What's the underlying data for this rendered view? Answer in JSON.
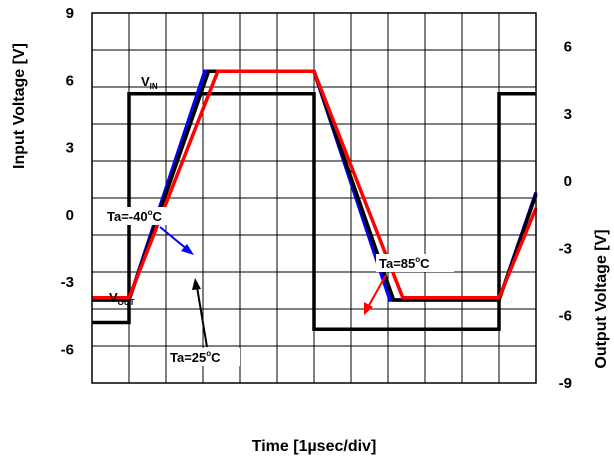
{
  "chart_data": {
    "type": "line",
    "x_unit": "µs (1 µs per division)",
    "x_range": [
      0,
      12
    ],
    "grid": true,
    "xlabel": "Time [1µsec/div]",
    "top_axis": {
      "ylabel": "Input Voltage [V]",
      "ylim": [
        -7.5,
        9
      ],
      "tick_labels": [
        "9",
        "6",
        "3",
        "0",
        "-3",
        "-6"
      ]
    },
    "bottom_axis": {
      "ylabel": "Output Voltage [V]",
      "ylim": [
        -9,
        7.5
      ],
      "tick_labels": [
        "6",
        "3",
        "0",
        "-3",
        "-6",
        "-9"
      ]
    },
    "series": [
      {
        "name": "V_IN",
        "axis": "top",
        "color": "#000000",
        "x": [
          0,
          1,
          1,
          6,
          6,
          11,
          11,
          12
        ],
        "y": [
          -4.8,
          -4.8,
          5.4,
          5.4,
          -5.1,
          -5.1,
          5.4,
          5.4
        ]
      },
      {
        "name": "Ta=-40°C",
        "axis": "bottom",
        "color": "#0000ff",
        "x": [
          0,
          1,
          3.05,
          6,
          8.05,
          11,
          12
        ],
        "y": [
          -5.3,
          -5.3,
          4.9,
          4.9,
          -5.3,
          -5.3,
          -0.5
        ]
      },
      {
        "name": "Ta=25°C",
        "axis": "bottom",
        "color": "#000000",
        "x": [
          0,
          1,
          3.15,
          6,
          8.15,
          11,
          12
        ],
        "y": [
          -5.3,
          -5.3,
          4.9,
          4.9,
          -5.3,
          -5.3,
          -0.6
        ]
      },
      {
        "name": "Ta=85°C",
        "axis": "bottom",
        "color": "#ff0000",
        "x": [
          0,
          1,
          3.4,
          6,
          8.4,
          11,
          12
        ],
        "y": [
          -5.2,
          -5.2,
          4.9,
          4.9,
          -5.2,
          -5.2,
          -1.2
        ]
      }
    ],
    "annotations": {
      "vin": {
        "main": "V",
        "sub": "IN"
      },
      "vout": {
        "main": "V",
        "sub": "OUT"
      },
      "ta_minus40": {
        "prefix": "Ta=-40",
        "sup": "o",
        "suffix": "C"
      },
      "ta_25": {
        "prefix": "Ta=25",
        "sup": "o",
        "suffix": "C"
      },
      "ta_85": {
        "prefix": "Ta=85",
        "sup": "o",
        "suffix": "C"
      }
    }
  }
}
